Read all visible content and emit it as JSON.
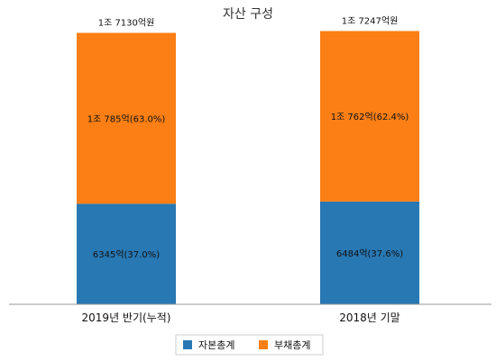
{
  "chart_data": {
    "type": "bar",
    "stacked": true,
    "title": "자산 구성",
    "categories": [
      "2019년 반기(누적)",
      "2018년 기말"
    ],
    "totals": [
      17130,
      17247
    ],
    "total_labels": [
      "1조 7130억원",
      "1조 7247억원"
    ],
    "series": [
      {
        "name": "자본총계",
        "values": [
          6345,
          6484
        ],
        "labels": [
          "6345억(37.0%)",
          "6484억(37.6%)"
        ],
        "color": "#2878b4"
      },
      {
        "name": "부채총계",
        "values": [
          10785,
          10762
        ],
        "labels": [
          "1조 785억(63.0%)",
          "1조 762억(62.4%)"
        ],
        "color": "#fb7f14"
      }
    ],
    "ylim": [
      0,
      17500
    ],
    "grid": false,
    "legend": "bottom-center"
  }
}
